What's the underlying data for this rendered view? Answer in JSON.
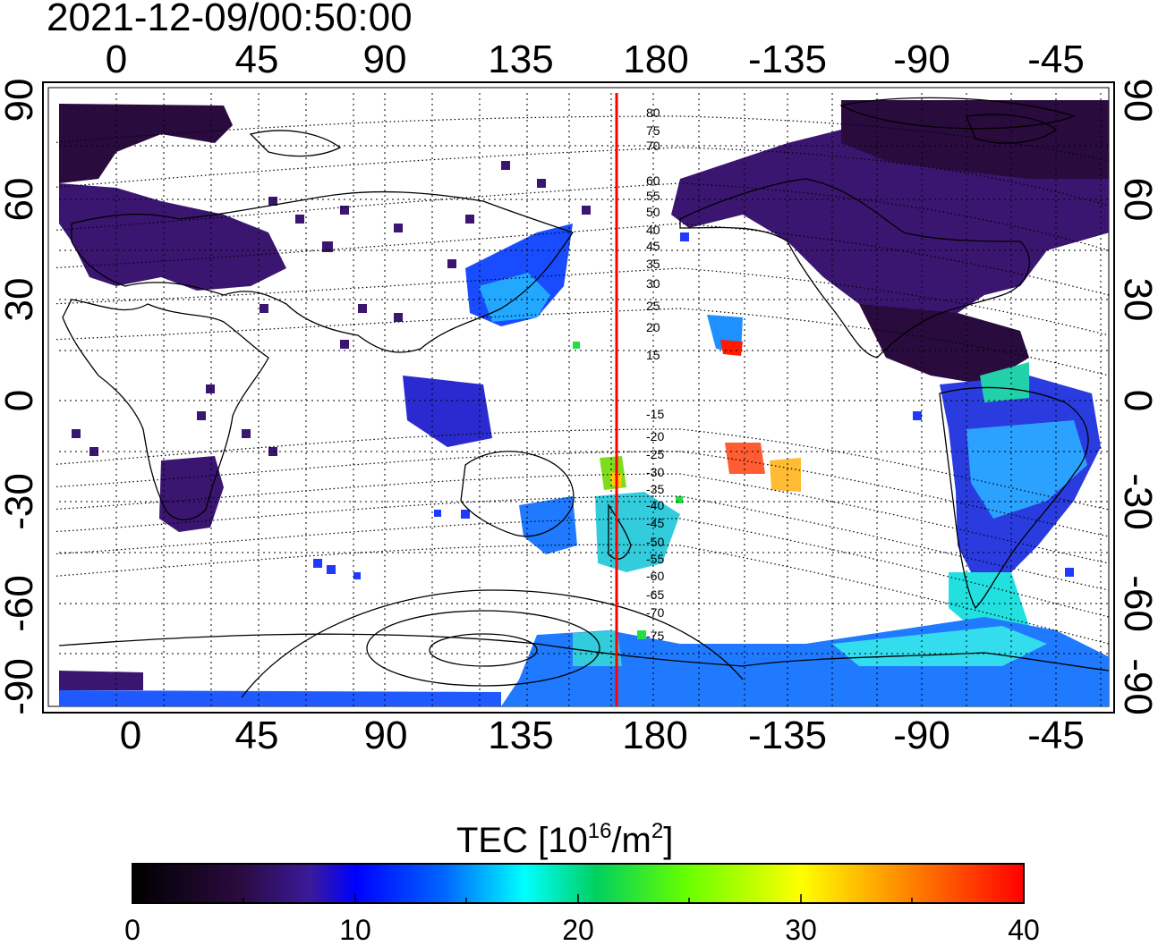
{
  "timestamp": "2021-12-09/00:50:00",
  "axes": {
    "top_lon_labels": [
      "0",
      "45",
      "90",
      "135",
      "180",
      "-135",
      "-90",
      "-45"
    ],
    "bottom_lon_labels": [
      "0",
      "45",
      "90",
      "135",
      "180",
      "-135",
      "-90",
      "-45"
    ],
    "left_lat_labels": [
      "90",
      "60",
      "30",
      "0",
      "-30",
      "-60",
      "-90"
    ],
    "right_lat_labels": [
      "90",
      "60",
      "30",
      "0",
      "-30",
      "-60",
      "-90"
    ]
  },
  "legend": {
    "title_prefix": "TEC  [10",
    "title_exp1": "16",
    "title_mid": "/m",
    "title_exp2": "2",
    "title_suffix": "]",
    "ticks": [
      "0",
      "10",
      "20",
      "30",
      "40"
    ],
    "min": 0,
    "max": 40
  },
  "contour_labels": [
    "80",
    "75",
    "70",
    "60",
    "55",
    "50",
    "45",
    "40",
    "35",
    "30",
    "25",
    "20",
    "15",
    "-15",
    "-20",
    "-25",
    "-30",
    "-35",
    "-40",
    "-45",
    "-50",
    "-55",
    "-60",
    "-65",
    "-70",
    "-75"
  ],
  "colors": {
    "meridian_line": "#ff0000",
    "low_tec": "#2a0b3e",
    "high_tec": "#ff0000"
  }
}
